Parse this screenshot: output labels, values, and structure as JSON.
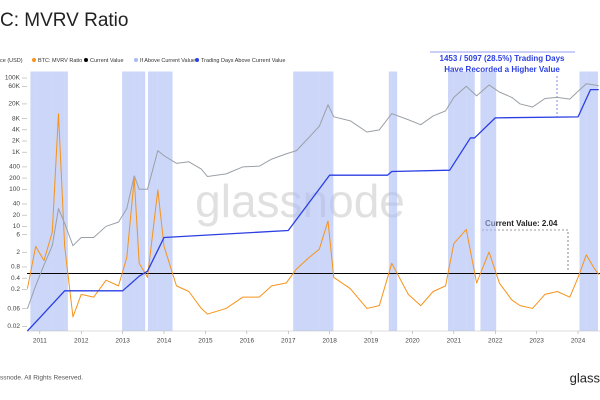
{
  "chart_data": {
    "type": "line",
    "title": "C: MVRV Ratio",
    "xlim": [
      2010.69,
      2024.53
    ],
    "xticks": [
      2011,
      2012,
      2013,
      2014,
      2015,
      2016,
      2017,
      2018,
      2019,
      2020,
      2021,
      2022,
      2023,
      2024
    ],
    "ylim": [
      0.015,
      150000
    ],
    "log_y": true,
    "yticks": [
      0.02,
      0.06,
      0.2,
      0.4,
      0.8,
      2,
      6,
      10,
      20,
      40,
      100,
      200,
      400,
      {
        "value": 1000,
        "label": "1K"
      },
      {
        "value": 2000,
        "label": "2K"
      },
      {
        "value": 4000,
        "label": "4K"
      },
      {
        "value": 8000,
        "label": "8K"
      },
      {
        "value": 20000,
        "label": "20K"
      },
      {
        "value": 60000,
        "label": "60K"
      },
      {
        "value": 100000,
        "label": "100K"
      }
    ],
    "y2lim": [
      0,
      9.2
    ],
    "y3lim": [
      0,
      1562
    ],
    "x": [
      2010.7,
      2010.9,
      2011.1,
      2011.3,
      2011.45,
      2011.6,
      2011.8,
      2012.0,
      2012.3,
      2012.6,
      2012.9,
      2013.1,
      2013.28,
      2013.4,
      2013.6,
      2013.85,
      2014.0,
      2014.3,
      2014.6,
      2014.9,
      2015.05,
      2015.5,
      2015.9,
      2016.3,
      2016.6,
      2016.95,
      2017.2,
      2017.5,
      2017.75,
      2017.96,
      2018.1,
      2018.5,
      2018.9,
      2019.2,
      2019.5,
      2019.9,
      2020.2,
      2020.5,
      2020.8,
      2021.0,
      2021.3,
      2021.55,
      2021.85,
      2022.1,
      2022.4,
      2022.6,
      2022.9,
      2023.2,
      2023.5,
      2023.8,
      2024.0,
      2024.2,
      2024.4,
      2024.5
    ],
    "series": [
      {
        "name": "ce (USD)",
        "color": "#9aa0a6",
        "axis": "y",
        "values": [
          0.06,
          0.25,
          0.9,
          3,
          30,
          12,
          3,
          5,
          5,
          10,
          13,
          30,
          230,
          100,
          100,
          1100,
          800,
          500,
          550,
          350,
          220,
          260,
          400,
          420,
          650,
          900,
          1100,
          2500,
          5000,
          19000,
          9000,
          7000,
          3500,
          4000,
          11000,
          7500,
          5500,
          9500,
          13000,
          30000,
          60000,
          33000,
          65000,
          42000,
          30000,
          20000,
          16500,
          28000,
          30000,
          27000,
          44000,
          70000,
          65000,
          62000
        ]
      },
      {
        "name": "BTC: MVRV Ratio",
        "color": "#f7931a",
        "axis": "y2",
        "values": [
          1.5,
          3,
          2.5,
          3.5,
          7.7,
          3,
          0.5,
          1.3,
          1.2,
          1.8,
          1.6,
          2.6,
          5.4,
          2.4,
          1.9,
          5,
          3,
          1.6,
          1.4,
          0.8,
          0.6,
          0.8,
          1.2,
          1.2,
          1.6,
          1.7,
          2.2,
          2.6,
          2.9,
          3.9,
          1.9,
          1.5,
          0.8,
          0.9,
          2.4,
          1.3,
          0.9,
          1.4,
          1.6,
          3.1,
          3.6,
          1.7,
          2.8,
          1.7,
          1.1,
          0.9,
          0.8,
          1.3,
          1.4,
          1.2,
          1.9,
          2.7,
          2.2,
          2.0
        ]
      },
      {
        "name": "Trading Days Above Current Value",
        "color": "#2b3fe3",
        "axis": "y3",
        "x": [
          2010.7,
          2011.0,
          2011.6,
          2013.0,
          2013.4,
          2013.6,
          2014.0,
          2017.0,
          2018.0,
          2019.4,
          2019.5,
          2020.9,
          2021.4,
          2021.5,
          2022.0,
          2024.0,
          2024.3,
          2024.5
        ],
        "values": [
          0,
          80,
          242,
          242,
          330,
          360,
          563,
          605,
          938,
          938,
          960,
          968,
          1162,
          1162,
          1283,
          1289,
          1453,
          1453
        ]
      }
    ],
    "current_value": {
      "name": "Current Value",
      "value": 2.04,
      "color": "#000000",
      "axis": "y2"
    },
    "shade": {
      "name": "If Above Current Value",
      "color": "#a9bbf4"
    },
    "annotations": [
      "1453 / 5097 (28.5%) Trading Days",
      "Have Recorded a Higher Value",
      "Current Value: 2.04"
    ],
    "watermark": "glassnode",
    "footer": "ssnode. All Rights Reserved.",
    "footer_logo": "glass"
  }
}
